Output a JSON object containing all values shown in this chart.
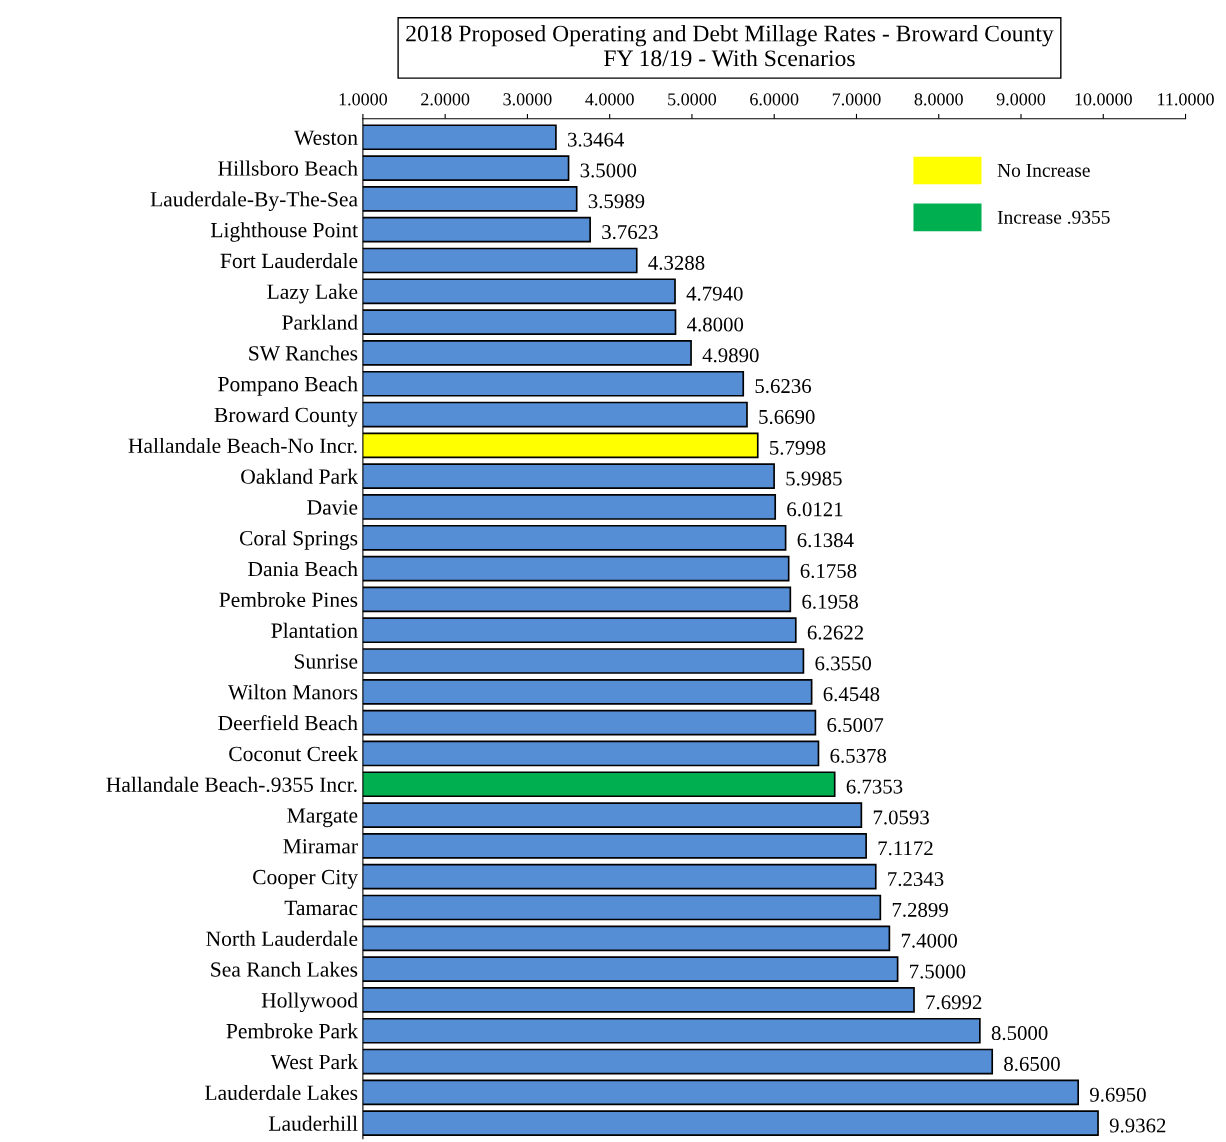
{
  "chart_data": {
    "type": "bar",
    "orientation": "horizontal",
    "title": "2018 Proposed Operating and Debt Millage Rates - Broward County\nFY 18/19 - With Scenarios",
    "categories": [
      "Weston",
      "Hillsboro Beach",
      "Lauderdale-By-The-Sea",
      "Lighthouse Point",
      "Fort Lauderdale",
      "Lazy Lake",
      "Parkland",
      "SW Ranches",
      "Pompano Beach",
      "Broward County",
      "Hallandale Beach-No Incr.",
      "Oakland Park",
      "Davie",
      "Coral Springs",
      "Dania Beach",
      "Pembroke Pines",
      "Plantation",
      "Sunrise",
      "Wilton Manors",
      "Deerfield Beach",
      "Coconut Creek",
      "Hallandale Beach-.9355 Incr.",
      "Margate",
      "Miramar",
      "Cooper City",
      "Tamarac",
      "North Lauderdale",
      "Sea Ranch Lakes",
      "Hollywood",
      "Pembroke Park",
      "West Park",
      "Lauderdale Lakes",
      "Lauderhill"
    ],
    "series": [
      {
        "color": "#558ed5",
        "values": [
          3.3464,
          3.5,
          3.5989,
          3.7623,
          4.3288,
          4.794,
          4.8,
          4.989,
          5.6236,
          5.669,
          null,
          5.9985,
          6.0121,
          6.1384,
          6.1758,
          6.1958,
          6.2622,
          6.355,
          6.4548,
          6.5007,
          6.5378,
          null,
          7.0593,
          7.1172,
          7.2343,
          7.2899,
          7.4,
          7.5,
          7.6992,
          8.5,
          8.65,
          9.695,
          9.9362
        ],
        "value_labels": [
          "3.3464",
          "3.5000",
          "3.5989",
          "3.7623",
          "4.3288",
          "4.7940",
          "4.8000",
          "4.9890",
          "5.6236",
          "5.6690",
          null,
          "5.9985",
          "6.0121",
          "6.1384",
          "6.1758",
          "6.1958",
          "6.2622",
          "6.3550",
          "6.4548",
          "6.5007",
          "6.5378",
          null,
          "7.0593",
          "7.1172",
          "7.2343",
          "7.2899",
          "7.4000",
          "7.5000",
          "7.6992",
          "8.5000",
          "8.6500",
          "9.6950",
          "9.9362"
        ]
      },
      {
        "name": "No Increase",
        "color": "#ffff00",
        "values": [
          null,
          null,
          null,
          null,
          null,
          null,
          null,
          null,
          null,
          null,
          5.7998,
          null,
          null,
          null,
          null,
          null,
          null,
          null,
          null,
          null,
          null,
          null,
          null,
          null,
          null,
          null,
          null,
          null,
          null,
          null,
          null,
          null,
          null
        ],
        "value_labels": [
          null,
          null,
          null,
          null,
          null,
          null,
          null,
          null,
          null,
          null,
          "5.7998",
          null,
          null,
          null,
          null,
          null,
          null,
          null,
          null,
          null,
          null,
          null,
          null,
          null,
          null,
          null,
          null,
          null,
          null,
          null,
          null,
          null,
          null
        ]
      },
      {
        "name": "Increase .9355",
        "color": "#00b050",
        "values": [
          null,
          null,
          null,
          null,
          null,
          null,
          null,
          null,
          null,
          null,
          null,
          null,
          null,
          null,
          null,
          null,
          null,
          null,
          null,
          null,
          null,
          6.7353,
          null,
          null,
          null,
          null,
          null,
          null,
          null,
          null,
          null,
          null,
          null
        ],
        "value_labels": [
          null,
          null,
          null,
          null,
          null,
          null,
          null,
          null,
          null,
          null,
          null,
          null,
          null,
          null,
          null,
          null,
          null,
          null,
          null,
          null,
          null,
          "6.7353",
          null,
          null,
          null,
          null,
          null,
          null,
          null,
          null,
          null,
          null,
          null
        ]
      }
    ],
    "xlim": [
      1,
      11
    ],
    "xticks": [
      {
        "value": 1,
        "label": "1.0000"
      },
      {
        "value": 2,
        "label": "2.0000"
      },
      {
        "value": 3,
        "label": "3.0000"
      },
      {
        "value": 4,
        "label": "4.0000"
      },
      {
        "value": 5,
        "label": "5.0000"
      },
      {
        "value": 6,
        "label": "6.0000"
      },
      {
        "value": 7,
        "label": "7.0000"
      },
      {
        "value": 8,
        "label": "8.0000"
      },
      {
        "value": 9,
        "label": "9.0000"
      },
      {
        "value": 10,
        "label": "10.0000"
      },
      {
        "value": 11,
        "label": "11.0000"
      }
    ],
    "grid": false,
    "legend": "top right"
  }
}
